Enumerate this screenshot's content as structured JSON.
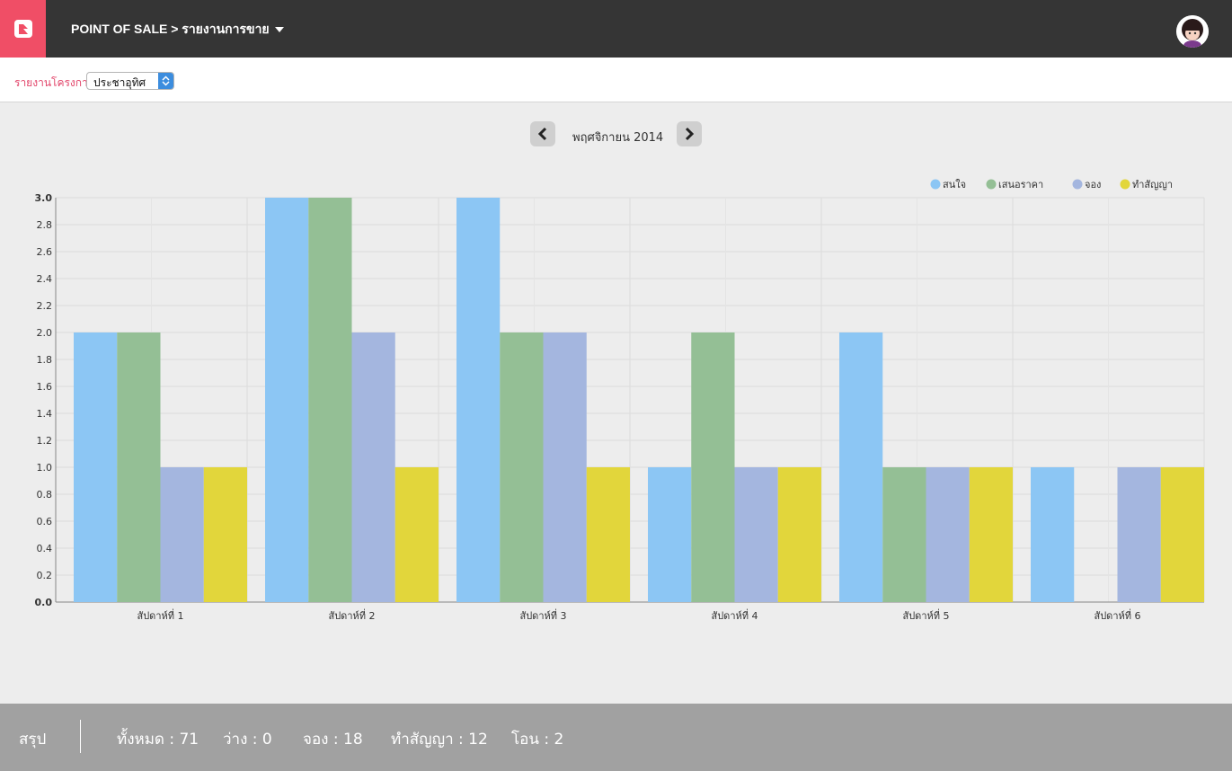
{
  "header": {
    "title": "POINT OF SALE > รายงานการขาย"
  },
  "filter": {
    "label": "รายงานโครงการ",
    "project_select": "ประชาอุทิศ"
  },
  "month_nav": {
    "label": "พฤศจิกายน 2014"
  },
  "colors": {
    "accent": "#f04e66",
    "topbar": "#353535",
    "footer": "#a1a1a1"
  },
  "chart_data": {
    "type": "bar",
    "categories": [
      "สัปดาห์ที่ 1",
      "สัปดาห์ที่ 2",
      "สัปดาห์ที่ 3",
      "สัปดาห์ที่ 4",
      "สัปดาห์ที่ 5",
      "สัปดาห์ที่ 6"
    ],
    "series": [
      {
        "name": "สนใจ",
        "color": "#8cc6f4",
        "values": [
          2,
          3,
          3,
          1,
          2,
          1
        ]
      },
      {
        "name": "เสนอราคา",
        "color": "#94bf95",
        "values": [
          2,
          3,
          2,
          2,
          1,
          0
        ]
      },
      {
        "name": "จอง",
        "color": "#a4b6df",
        "values": [
          1,
          2,
          2,
          1,
          1,
          1
        ]
      },
      {
        "name": "ทำสัญญา",
        "color": "#e2d63b",
        "values": [
          1,
          1,
          1,
          1,
          1,
          1
        ]
      }
    ],
    "ylim": [
      0,
      3
    ],
    "yticks": [
      "0.0",
      "0.2",
      "0.4",
      "0.6",
      "0.8",
      "1.0",
      "1.2",
      "1.4",
      "1.6",
      "1.8",
      "2.0",
      "2.2",
      "2.4",
      "2.6",
      "2.8",
      "3.0"
    ],
    "grid": true,
    "legend": "top-right"
  },
  "summary": {
    "title": "สรุป",
    "total": "ทั้งหมด : 71",
    "available": "ว่าง : 0",
    "booked": "จอง : 18",
    "contracted": "ทำสัญญา : 12",
    "transferred": "โอน : 2"
  }
}
